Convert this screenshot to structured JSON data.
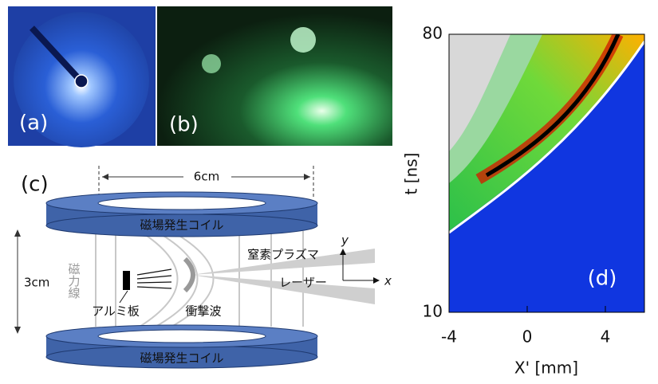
{
  "panels": {
    "a": {
      "label": "(a)"
    },
    "b": {
      "label": "(b)"
    },
    "c": {
      "label": "(c)",
      "width_label": "6cm",
      "height_label": "3cm",
      "coil_top": "磁場発生コイル",
      "coil_bottom": "磁場発生コイル",
      "field_lines": "磁力線",
      "plasma": "窒素プラズマ",
      "laser": "レーザー",
      "target": "アルミ板",
      "shock": "衝撃波",
      "axis_x": "x",
      "axis_y": "y"
    }
  },
  "chart_data": {
    "type": "heatmap",
    "label": "(d)",
    "x_label": "X' [mm]",
    "y_label": "t [ns]",
    "xlim": [
      -4,
      6
    ],
    "ylim": [
      10,
      80
    ],
    "xticks": [
      -4,
      0,
      4
    ],
    "yticks": [
      10,
      80
    ]
  }
}
